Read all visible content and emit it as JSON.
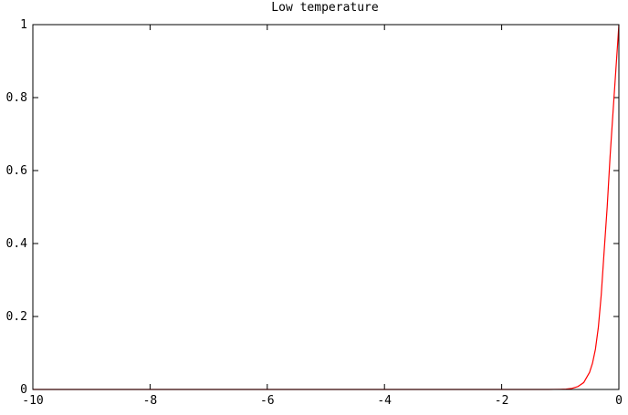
{
  "chart_data": {
    "type": "line",
    "title": "Low temperature",
    "xlabel": "",
    "ylabel": "",
    "xlim": [
      -10,
      0
    ],
    "ylim": [
      0,
      1
    ],
    "x_ticks": [
      "-10",
      "-8",
      "-6",
      "-4",
      "-2",
      "0"
    ],
    "y_ticks": [
      "0",
      "0.2",
      "0.4",
      "0.6",
      "0.8",
      "1"
    ],
    "grid": false,
    "legend": "none",
    "series": [
      {
        "color": "#ff0000",
        "x": [
          -10,
          -9,
          -8,
          -7,
          -6,
          -5,
          -4,
          -3,
          -2,
          -1.5,
          -1.2,
          -1.0,
          -0.9,
          -0.8,
          -0.7,
          -0.6,
          -0.5,
          -0.45,
          -0.4,
          -0.35,
          -0.3,
          -0.25,
          -0.2,
          -0.15,
          -0.1,
          -0.05,
          -0.02,
          0
        ],
        "y": [
          0,
          0,
          0,
          0,
          0,
          0,
          0,
          0,
          0,
          0,
          0,
          0.0004,
          0.0011,
          0.003,
          0.008,
          0.019,
          0.047,
          0.072,
          0.11,
          0.17,
          0.26,
          0.38,
          0.5,
          0.64,
          0.76,
          0.88,
          0.95,
          1.0
        ]
      }
    ]
  }
}
